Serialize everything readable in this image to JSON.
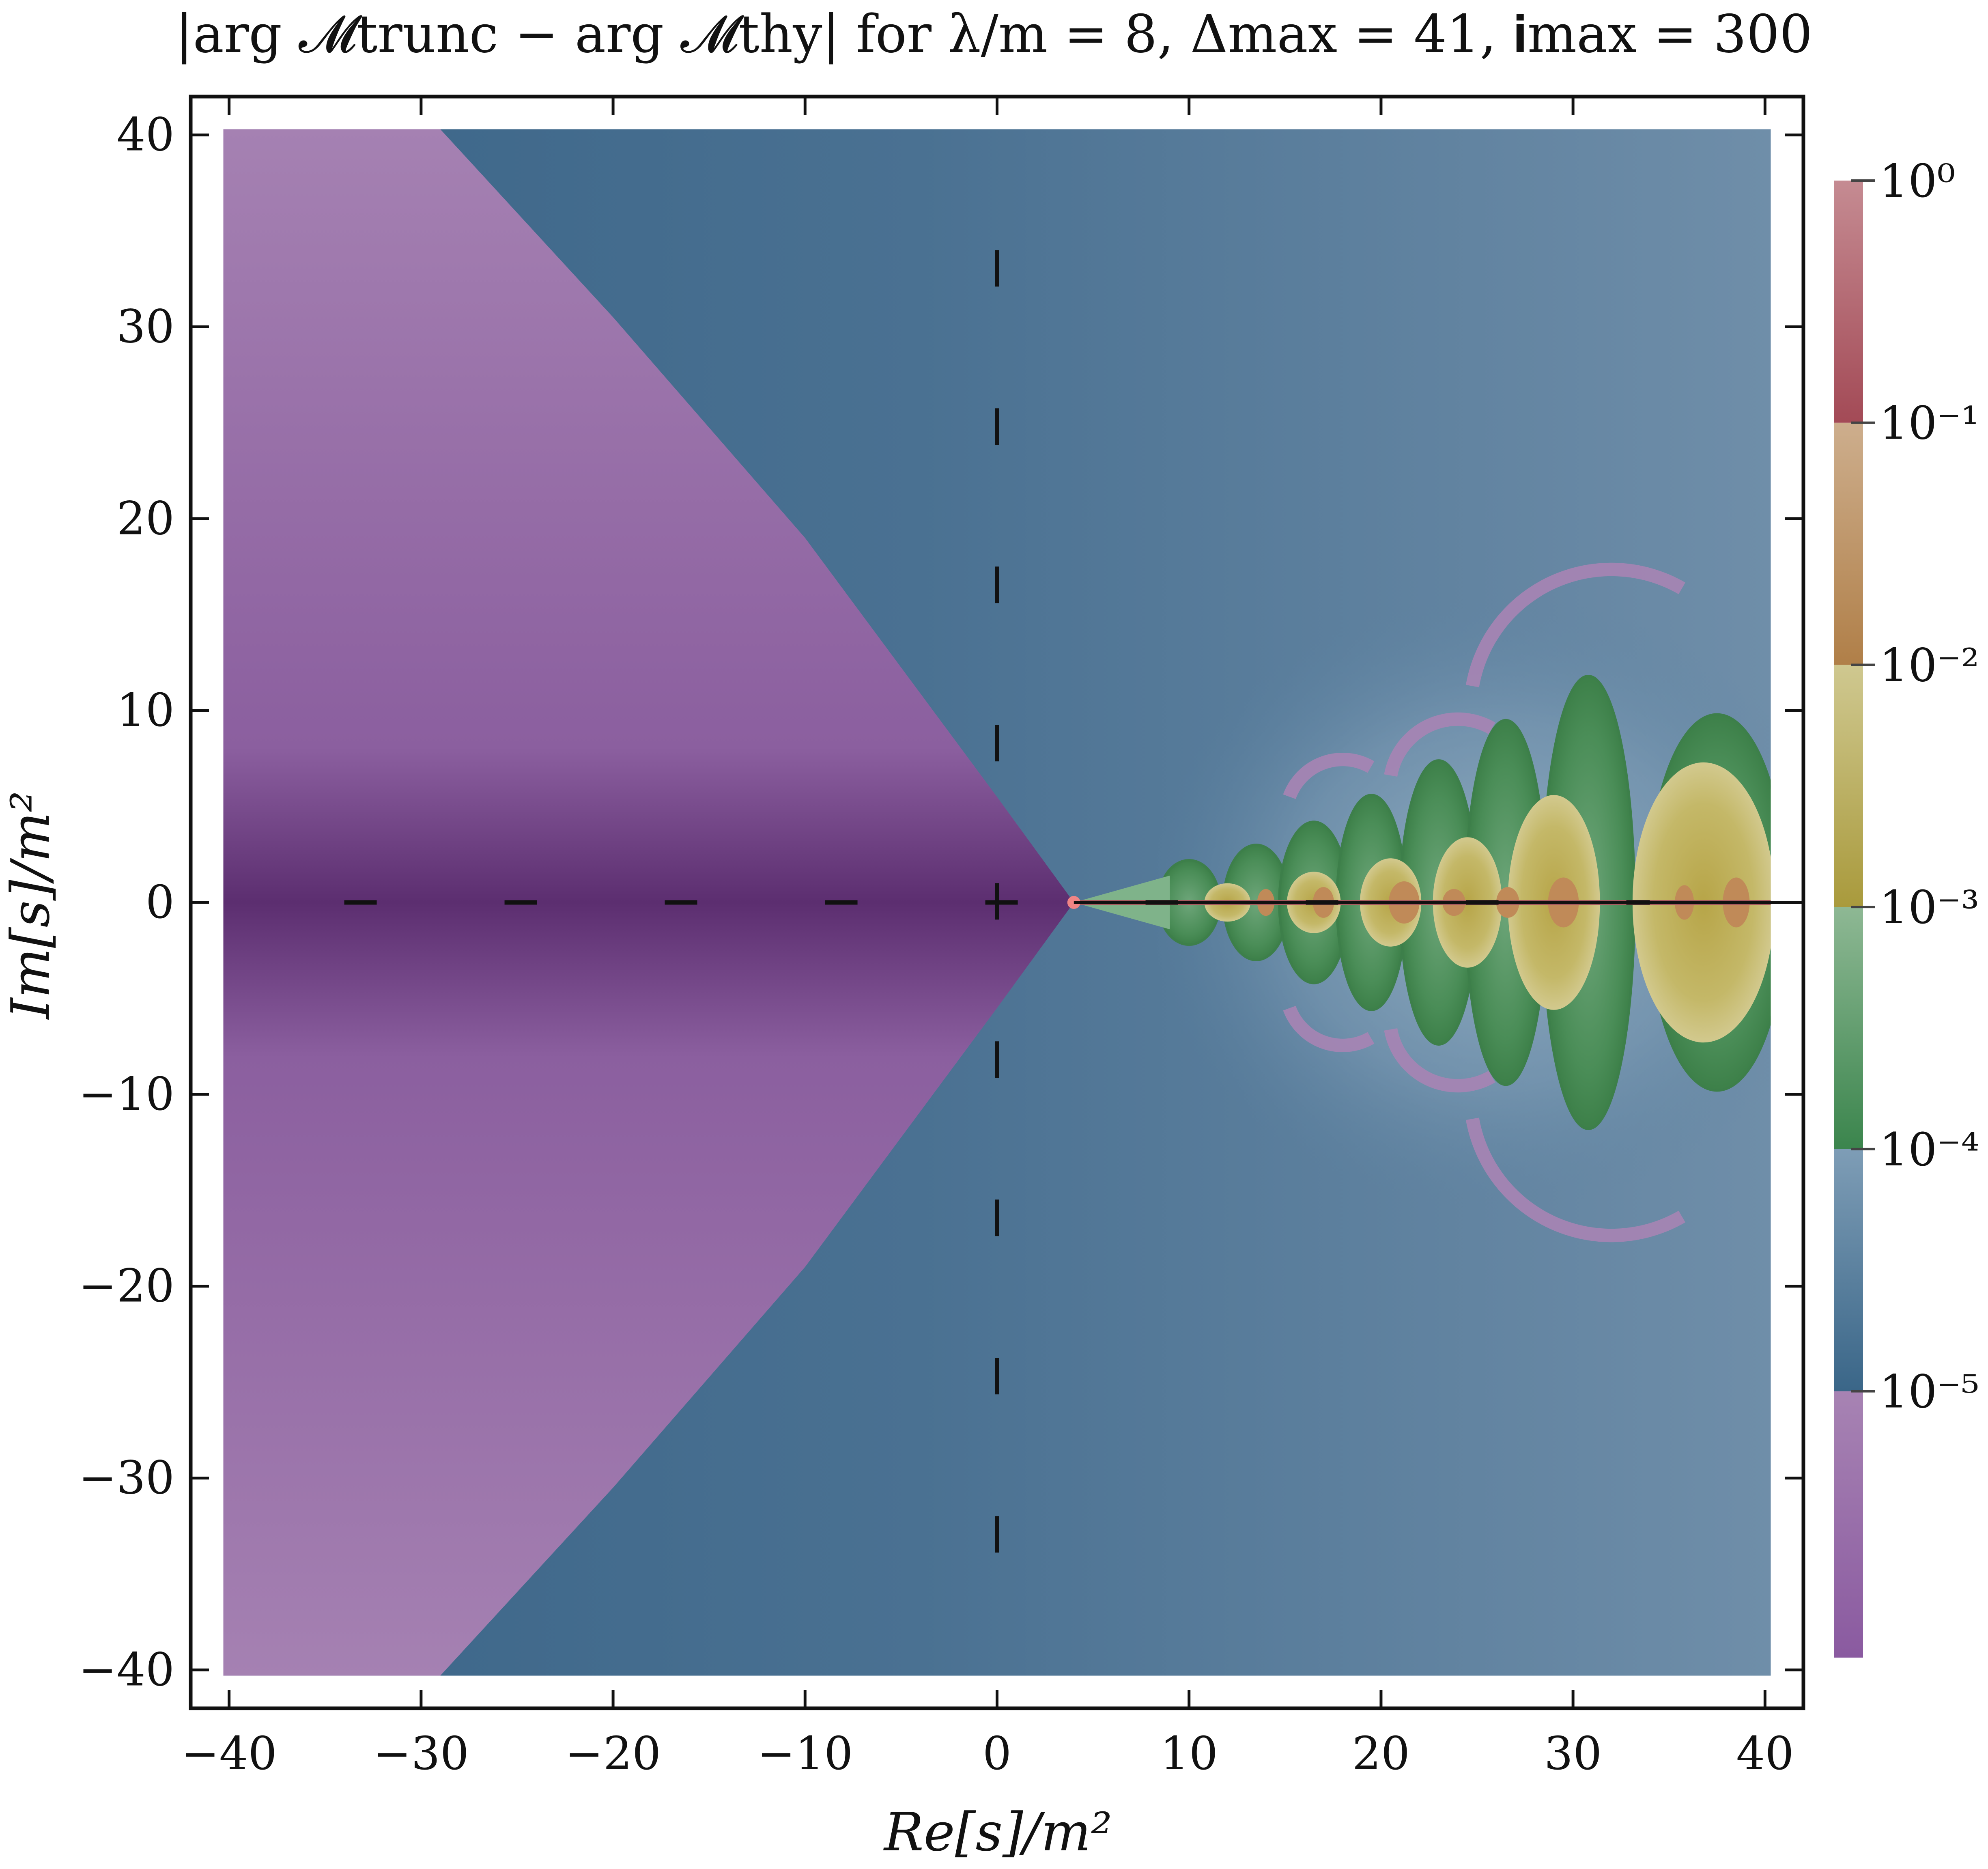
{
  "chart_data": {
    "type": "heatmap",
    "title": "|arg 𝓜trunc − arg 𝓜thy| for λ/m = 8, Δmax = 41, 𝐢max = 300",
    "xlabel": "Re[s]/m²",
    "ylabel": "Im[s]/m²",
    "xlim": [
      -42,
      42
    ],
    "ylim": [
      -42,
      42
    ],
    "data_extent_x": [
      -40.3,
      40.3
    ],
    "data_extent_y": [
      -40.3,
      40.3
    ],
    "x_ticks": [
      -40,
      -30,
      -20,
      -10,
      0,
      10,
      20,
      30,
      40
    ],
    "x_tick_labels": [
      "−40",
      "−30",
      "−20",
      "−10",
      "0",
      "10",
      "20",
      "30",
      "40"
    ],
    "y_ticks": [
      -40,
      -30,
      -20,
      -10,
      0,
      10,
      20,
      30,
      40
    ],
    "y_tick_labels": [
      "−40",
      "−30",
      "−20",
      "−10",
      "0",
      "10",
      "20",
      "30",
      "40"
    ],
    "grid": false,
    "colorbar": {
      "scale": "log",
      "range_exponent": [
        -6.1,
        0
      ],
      "tick_exponents": [
        0,
        -1,
        -2,
        -3,
        -4,
        -5
      ],
      "tick_labels": [
        "10⁰",
        "10⁻¹",
        "10⁻²",
        "10⁻³",
        "10⁻⁴",
        "10⁻⁵"
      ],
      "bands": [
        {
          "from": -5,
          "to": 0,
          "low_color": "#8a5aa0",
          "high_color": "#a783b3",
          "name": "purple"
        },
        {
          "from": -4,
          "to": -5,
          "low_color": "#3a6688",
          "high_color": "#7e9db6",
          "name": "blue"
        },
        {
          "from": -3,
          "to": -4,
          "low_color": "#3b854d",
          "high_color": "#8eb894",
          "name": "green"
        },
        {
          "from": -2,
          "to": -3,
          "low_color": "#a99a3c",
          "high_color": "#cfc890",
          "name": "yellow"
        },
        {
          "from": -1,
          "to": -2,
          "low_color": "#b07f48",
          "high_color": "#cdae8d",
          "name": "tan"
        },
        {
          "from": 0,
          "to": -1,
          "low_color": "#a34a56",
          "high_color": "#c58b92",
          "name": "red"
        }
      ]
    },
    "colors": {
      "purple_deep": "#5c2e70",
      "purple_light": "#a581b2",
      "blue_dark": "#3b6588",
      "blue_mid": "#52799a",
      "blue_light": "#8aa7bd",
      "green": "#4a8d57",
      "green_light": "#7fb38a",
      "yellow": "#c2b560",
      "tan": "#c08a58",
      "red_line": "#a85a5f",
      "threshold_dot": "#f08585",
      "dash": "#111111"
    },
    "regions": {
      "wedge_vertex": [
        4,
        0
      ],
      "wedge_edge_points": [
        [
          4,
          0
        ],
        [
          0,
          5.5
        ],
        [
          -10,
          19
        ],
        [
          -20,
          30.5
        ],
        [
          -29,
          40.3
        ]
      ],
      "threshold_point": [
        4,
        0
      ],
      "cut_start_x": 4,
      "dashed_vertical_x": 0,
      "dashed_vertical_y_range": [
        -34,
        34
      ],
      "dashed_horizontal_y": 0,
      "dashed_horizontal_x_range": [
        -34,
        34
      ],
      "lobes": [
        {
          "x": 10,
          "y": 0,
          "rx": 1.6,
          "ry": 2.2
        },
        {
          "x": 13.5,
          "y": 0,
          "rx": 1.7,
          "ry": 3.0
        },
        {
          "x": 16.5,
          "y": 0,
          "rx": 1.8,
          "ry": 4.2
        },
        {
          "x": 19.5,
          "y": 0,
          "rx": 1.8,
          "ry": 5.6
        },
        {
          "x": 23,
          "y": 0,
          "rx": 2.0,
          "ry": 7.4
        },
        {
          "x": 26.5,
          "y": 0,
          "rx": 2.1,
          "ry": 9.5
        },
        {
          "x": 30.8,
          "y": 0,
          "rx": 2.4,
          "ry": 11.8
        },
        {
          "x": 37.5,
          "y": 0,
          "rx": 3.6,
          "ry": 9.8
        }
      ],
      "yellow_cores": [
        {
          "x": 12,
          "y": 0,
          "rx": 1.2,
          "ry": 1.0
        },
        {
          "x": 16.5,
          "y": 0,
          "rx": 1.4,
          "ry": 1.6
        },
        {
          "x": 20.5,
          "y": 0,
          "rx": 1.6,
          "ry": 2.3
        },
        {
          "x": 24.5,
          "y": 0,
          "rx": 1.8,
          "ry": 3.4
        },
        {
          "x": 29,
          "y": 0,
          "rx": 2.4,
          "ry": 5.6
        },
        {
          "x": 36.8,
          "y": 0,
          "rx": 3.7,
          "ry": 7.3
        }
      ],
      "tan_cores": [
        {
          "x": 14,
          "y": 0,
          "rx": 0.45,
          "ry": 0.7
        },
        {
          "x": 17,
          "y": 0,
          "rx": 0.55,
          "ry": 0.8
        },
        {
          "x": 21.2,
          "y": 0,
          "rx": 0.8,
          "ry": 1.1
        },
        {
          "x": 23.8,
          "y": 0,
          "rx": 0.6,
          "ry": 0.7
        },
        {
          "x": 26.6,
          "y": 0,
          "rx": 0.6,
          "ry": 0.8
        },
        {
          "x": 29.5,
          "y": 0,
          "rx": 0.8,
          "ry": 1.3
        },
        {
          "x": 35.8,
          "y": 0,
          "rx": 0.5,
          "ry": 0.9
        },
        {
          "x": 38.5,
          "y": 0,
          "rx": 0.7,
          "ry": 1.3
        }
      ],
      "purple_arcs": [
        {
          "cx": 32,
          "cy": 10,
          "r": 7.0,
          "a0": 190,
          "a1": 300
        },
        {
          "cx": 24,
          "cy": 6,
          "r": 3.2,
          "a0": 190,
          "a1": 300
        },
        {
          "cx": 18,
          "cy": 4.5,
          "r": 2.6,
          "a0": 200,
          "a1": 300
        }
      ]
    }
  }
}
